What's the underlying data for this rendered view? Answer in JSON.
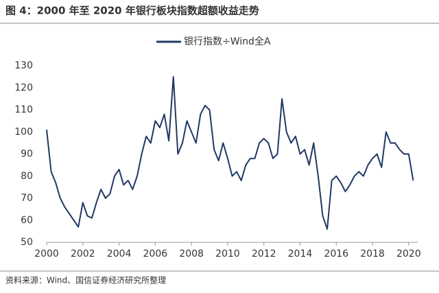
{
  "chart_data": {
    "type": "line",
    "title": "图 4：2000 年至 2020 年银行板块指数超额收益走势",
    "source": "资料来源：Wind、国信证券经济研究所整理",
    "x": [
      2000,
      2000.25,
      2000.5,
      2000.75,
      2001,
      2001.25,
      2001.5,
      2001.75,
      2002,
      2002.25,
      2002.5,
      2002.75,
      2003,
      2003.25,
      2003.5,
      2003.75,
      2004,
      2004.25,
      2004.5,
      2004.75,
      2005,
      2005.25,
      2005.5,
      2005.75,
      2006,
      2006.25,
      2006.5,
      2006.75,
      2007,
      2007.25,
      2007.5,
      2007.75,
      2008,
      2008.25,
      2008.5,
      2008.75,
      2009,
      2009.25,
      2009.5,
      2009.75,
      2010,
      2010.25,
      2010.5,
      2010.75,
      2011,
      2011.25,
      2011.5,
      2011.75,
      2012,
      2012.25,
      2012.5,
      2012.75,
      2013,
      2013.25,
      2013.5,
      2013.75,
      2014,
      2014.25,
      2014.5,
      2014.75,
      2015,
      2015.25,
      2015.5,
      2015.75,
      2016,
      2016.25,
      2016.5,
      2016.75,
      2017,
      2017.25,
      2017.5,
      2017.75,
      2018,
      2018.25,
      2018.5,
      2018.75,
      2019,
      2019.25,
      2019.5,
      2019.75,
      2020,
      2020.25
    ],
    "series": [
      {
        "name": "银行指数÷Wind全A",
        "color": "#1f3864",
        "values": [
          101,
          82,
          77,
          70,
          66,
          63,
          60,
          57,
          68,
          62,
          61,
          68,
          74,
          70,
          72,
          80,
          83,
          76,
          78,
          74,
          80,
          90,
          98,
          95,
          105,
          102,
          108,
          96,
          125,
          90,
          95,
          105,
          100,
          95,
          108,
          112,
          110,
          92,
          87,
          95,
          88,
          80,
          82,
          78,
          85,
          88,
          88,
          95,
          97,
          95,
          88,
          90,
          115,
          100,
          95,
          98,
          90,
          92,
          85,
          95,
          80,
          62,
          56,
          78,
          80,
          77,
          73,
          76,
          80,
          82,
          80,
          85,
          88,
          90,
          84,
          100,
          95,
          95,
          92,
          90,
          90,
          78
        ]
      }
    ],
    "xlim": [
      2000,
      2020.5
    ],
    "xticks": [
      2000,
      2002,
      2004,
      2006,
      2008,
      2010,
      2012,
      2014,
      2016,
      2018,
      2020
    ],
    "ylim": [
      50,
      130
    ],
    "yticks": [
      50,
      60,
      70,
      80,
      90,
      100,
      110,
      120,
      130
    ]
  }
}
